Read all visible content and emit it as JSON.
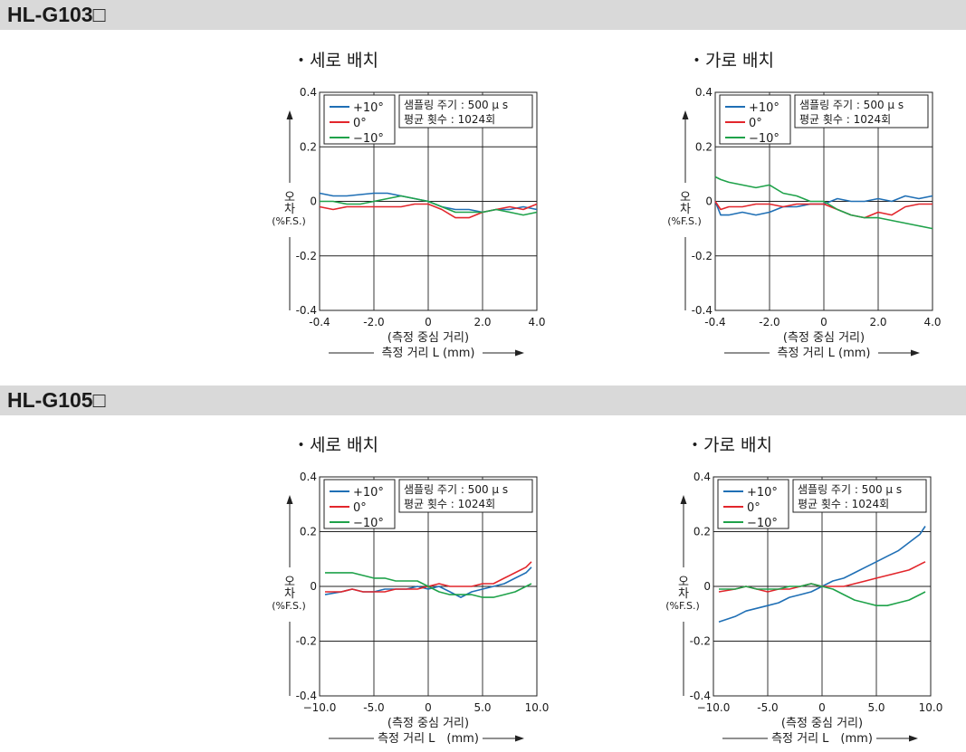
{
  "sections": [
    {
      "title": "HL-G103□"
    },
    {
      "title": "HL-G105□"
    }
  ],
  "colors": {
    "plus10": "#1f6fb5",
    "zero": "#e2262c",
    "minus10": "#1fa24a"
  },
  "chart_data": [
    {
      "type": "line",
      "title": "・세로 배치",
      "ylabel": [
        "오",
        "차",
        "(%F.S.)"
      ],
      "xlabel": "(측정 중심 거리)",
      "xlabel2": "측정 거리 L (mm)",
      "xlim": [
        -4.0,
        4.0
      ],
      "ylim": [
        -0.4,
        0.4
      ],
      "xticks": [
        "-0.4",
        "-2.0",
        "0",
        "2.0",
        "4.0"
      ],
      "yticks": [
        "0.4",
        "0.2",
        "0",
        "-0.2",
        "-0.4"
      ],
      "legend": [
        "+10°",
        "0°",
        "−10°"
      ],
      "info": [
        "샘플링 주기 : 500 μ s",
        "평균 횟수 : 1024회"
      ],
      "series": [
        {
          "name": "+10°",
          "x": [
            -4.0,
            -3.5,
            -3.0,
            -2.5,
            -2.0,
            -1.5,
            -1.0,
            -0.5,
            0.0,
            0.5,
            1.0,
            1.5,
            2.0,
            2.5,
            3.0,
            3.5,
            4.0
          ],
          "values": [
            0.03,
            0.02,
            0.02,
            0.025,
            0.03,
            0.03,
            0.02,
            0.01,
            0.0,
            -0.02,
            -0.03,
            -0.03,
            -0.04,
            -0.03,
            -0.03,
            -0.02,
            -0.03
          ]
        },
        {
          "name": "0°",
          "x": [
            -4.0,
            -3.5,
            -3.0,
            -2.5,
            -2.0,
            -1.5,
            -1.0,
            -0.5,
            0.0,
            0.5,
            1.0,
            1.5,
            2.0,
            2.5,
            3.0,
            3.5,
            4.0
          ],
          "values": [
            -0.02,
            -0.03,
            -0.02,
            -0.02,
            -0.02,
            -0.02,
            -0.02,
            -0.01,
            -0.01,
            -0.03,
            -0.06,
            -0.06,
            -0.04,
            -0.03,
            -0.02,
            -0.03,
            -0.01
          ]
        },
        {
          "name": "−10°",
          "x": [
            -4.0,
            -3.5,
            -3.0,
            -2.5,
            -2.0,
            -1.5,
            -1.0,
            -0.5,
            0.0,
            0.5,
            1.0,
            1.5,
            2.0,
            2.5,
            3.0,
            3.5,
            4.0
          ],
          "values": [
            0.0,
            0.0,
            -0.01,
            -0.01,
            0.0,
            0.01,
            0.02,
            0.01,
            0.0,
            -0.02,
            -0.04,
            -0.04,
            -0.04,
            -0.03,
            -0.04,
            -0.05,
            -0.04
          ]
        }
      ]
    },
    {
      "type": "line",
      "title": "・가로 배치",
      "ylabel": [
        "오",
        "차",
        "(%F.S.)"
      ],
      "xlabel": "(측정 중심 거리)",
      "xlabel2": "측정 거리 L (mm)",
      "xlim": [
        -4.0,
        4.0
      ],
      "ylim": [
        -0.4,
        0.4
      ],
      "xticks": [
        "-0.4",
        "-2.0",
        "0",
        "2.0",
        "4.0"
      ],
      "yticks": [
        "0.4",
        "0.2",
        "0",
        "-0.2",
        "-0.4"
      ],
      "legend": [
        "+10°",
        "0°",
        "−10°"
      ],
      "info": [
        "샘플링 주기 : 500 μ s",
        "평균 횟수 : 1024회"
      ],
      "series": [
        {
          "name": "+10°",
          "x": [
            -4.0,
            -3.8,
            -3.5,
            -3.0,
            -2.5,
            -2.0,
            -1.5,
            -1.0,
            -0.5,
            0.0,
            0.5,
            1.0,
            1.5,
            2.0,
            2.5,
            3.0,
            3.5,
            4.0
          ],
          "values": [
            0.0,
            -0.05,
            -0.05,
            -0.04,
            -0.05,
            -0.04,
            -0.02,
            -0.02,
            -0.01,
            -0.01,
            0.01,
            0.0,
            0.0,
            0.01,
            0.0,
            0.02,
            0.01,
            0.02
          ]
        },
        {
          "name": "0°",
          "x": [
            -4.0,
            -3.8,
            -3.5,
            -3.0,
            -2.5,
            -2.0,
            -1.5,
            -1.0,
            -0.5,
            0.0,
            0.5,
            1.0,
            1.5,
            2.0,
            2.5,
            3.0,
            3.5,
            4.0
          ],
          "values": [
            0.0,
            -0.03,
            -0.02,
            -0.02,
            -0.01,
            -0.01,
            -0.02,
            -0.01,
            -0.01,
            -0.01,
            -0.03,
            -0.05,
            -0.06,
            -0.04,
            -0.05,
            -0.02,
            -0.01,
            -0.01
          ]
        },
        {
          "name": "−10°",
          "x": [
            -4.0,
            -3.8,
            -3.5,
            -3.0,
            -2.5,
            -2.0,
            -1.5,
            -1.0,
            -0.5,
            0.0,
            0.5,
            1.0,
            1.5,
            2.0,
            2.5,
            3.0,
            3.5,
            4.0
          ],
          "values": [
            0.09,
            0.08,
            0.07,
            0.06,
            0.05,
            0.06,
            0.03,
            0.02,
            0.0,
            0.0,
            -0.03,
            -0.05,
            -0.06,
            -0.06,
            -0.07,
            -0.08,
            -0.09,
            -0.1
          ]
        }
      ]
    },
    {
      "type": "line",
      "title": "・세로 배치",
      "ylabel": [
        "오",
        "차",
        "(%F.S.)"
      ],
      "xlabel": "(측정 중심 거리)",
      "xlabel2": "측정 거리 L　(mm)",
      "xlim": [
        -10.0,
        10.0
      ],
      "ylim": [
        -0.4,
        0.4
      ],
      "xticks": [
        "−10.0",
        "-5.0",
        "0",
        "5.0",
        "10.0"
      ],
      "yticks": [
        "0.4",
        "0.2",
        "0",
        "-0.2",
        "-0.4"
      ],
      "legend": [
        "+10°",
        "0°",
        "−10°"
      ],
      "info": [
        "샘플링 주기 : 500 μ s",
        "평균 횟수 : 1024회"
      ],
      "series": [
        {
          "name": "+10°",
          "x": [
            -9.5,
            -8.0,
            -7.0,
            -6.0,
            -5.0,
            -4.0,
            -3.0,
            -2.0,
            -1.0,
            0.0,
            1.0,
            2.0,
            3.0,
            4.0,
            5.0,
            6.0,
            7.0,
            8.0,
            9.0,
            9.5
          ],
          "values": [
            -0.03,
            -0.02,
            -0.01,
            -0.02,
            -0.02,
            -0.01,
            -0.01,
            -0.01,
            0.0,
            -0.01,
            0.0,
            -0.02,
            -0.04,
            -0.02,
            -0.01,
            0.0,
            0.01,
            0.03,
            0.05,
            0.07
          ]
        },
        {
          "name": "0°",
          "x": [
            -9.5,
            -8.0,
            -7.0,
            -6.0,
            -5.0,
            -4.0,
            -3.0,
            -2.0,
            -1.0,
            0.0,
            1.0,
            2.0,
            3.0,
            4.0,
            5.0,
            6.0,
            7.0,
            8.0,
            9.0,
            9.5
          ],
          "values": [
            -0.02,
            -0.02,
            -0.01,
            -0.02,
            -0.02,
            -0.02,
            -0.01,
            -0.01,
            -0.01,
            0.0,
            0.01,
            0.0,
            0.0,
            0.0,
            0.01,
            0.01,
            0.03,
            0.05,
            0.07,
            0.09
          ]
        },
        {
          "name": "−10°",
          "x": [
            -9.5,
            -8.0,
            -7.0,
            -6.0,
            -5.0,
            -4.0,
            -3.0,
            -2.0,
            -1.0,
            0.0,
            1.0,
            2.0,
            3.0,
            4.0,
            5.0,
            6.0,
            7.0,
            8.0,
            9.0,
            9.5
          ],
          "values": [
            0.05,
            0.05,
            0.05,
            0.04,
            0.03,
            0.03,
            0.02,
            0.02,
            0.02,
            0.0,
            -0.02,
            -0.03,
            -0.03,
            -0.03,
            -0.04,
            -0.04,
            -0.03,
            -0.02,
            0.0,
            0.01
          ]
        }
      ]
    },
    {
      "type": "line",
      "title": "・가로 배치",
      "ylabel": [
        "오",
        "차",
        "(%F.S.)"
      ],
      "xlabel": "(측정 중심 거리)",
      "xlabel2": "측정 거리 L　(mm)",
      "xlim": [
        -10.0,
        10.0
      ],
      "ylim": [
        -0.4,
        0.4
      ],
      "xticks": [
        "−10.0",
        "-5.0",
        "0",
        "5.0",
        "10.0"
      ],
      "yticks": [
        "0.4",
        "0.2",
        "0",
        "-0.2",
        "-0.4"
      ],
      "legend": [
        "+10°",
        "0°",
        "−10°"
      ],
      "info": [
        "샘플링 주기 : 500 μ s",
        "평균 횟수 : 1024회"
      ],
      "series": [
        {
          "name": "+10°",
          "x": [
            -9.5,
            -8.0,
            -7.0,
            -6.0,
            -5.0,
            -4.0,
            -3.0,
            -2.0,
            -1.0,
            0.0,
            1.0,
            2.0,
            3.0,
            4.0,
            5.0,
            6.0,
            7.0,
            8.0,
            9.0,
            9.5
          ],
          "values": [
            -0.13,
            -0.11,
            -0.09,
            -0.08,
            -0.07,
            -0.06,
            -0.04,
            -0.03,
            -0.02,
            0.0,
            0.02,
            0.03,
            0.05,
            0.07,
            0.09,
            0.11,
            0.13,
            0.16,
            0.19,
            0.22
          ]
        },
        {
          "name": "0°",
          "x": [
            -9.5,
            -8.0,
            -7.0,
            -6.0,
            -5.0,
            -4.0,
            -3.0,
            -2.0,
            -1.0,
            0.0,
            1.0,
            2.0,
            3.0,
            4.0,
            5.0,
            6.0,
            7.0,
            8.0,
            9.0,
            9.5
          ],
          "values": [
            -0.02,
            -0.01,
            0.0,
            -0.01,
            -0.02,
            -0.01,
            -0.01,
            0.0,
            0.01,
            0.0,
            0.0,
            0.0,
            0.01,
            0.02,
            0.03,
            0.04,
            0.05,
            0.06,
            0.08,
            0.09
          ]
        },
        {
          "name": "−10°",
          "x": [
            -9.5,
            -8.0,
            -7.0,
            -6.0,
            -5.0,
            -4.0,
            -3.0,
            -2.0,
            -1.0,
            0.0,
            1.0,
            2.0,
            3.0,
            4.0,
            5.0,
            6.0,
            7.0,
            8.0,
            9.0,
            9.5
          ],
          "values": [
            -0.01,
            -0.01,
            0.0,
            -0.01,
            -0.01,
            -0.01,
            0.0,
            0.0,
            0.01,
            0.0,
            -0.01,
            -0.03,
            -0.05,
            -0.06,
            -0.07,
            -0.07,
            -0.06,
            -0.05,
            -0.03,
            -0.02
          ]
        }
      ]
    }
  ]
}
